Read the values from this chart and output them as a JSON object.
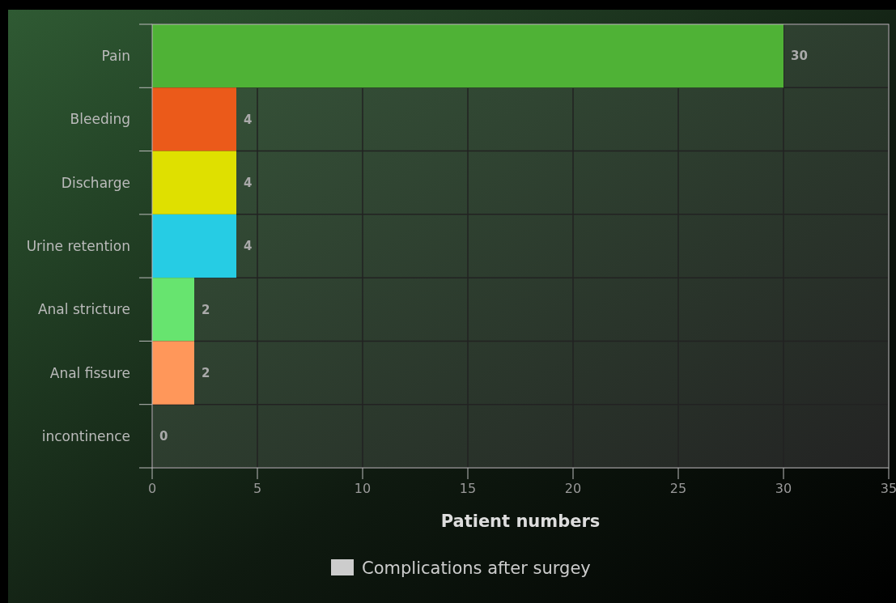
{
  "chart_data": {
    "type": "bar",
    "orientation": "horizontal",
    "xlabel": "Patient numbers",
    "categories": [
      "Pain",
      "Bleeding",
      "Discharge",
      "Urine retention",
      "Anal stricture",
      "Anal fissure",
      "incontinence"
    ],
    "series": [
      {
        "name": "Complications after surgey",
        "color": "#cccccc",
        "values": [
          30,
          4,
          4,
          4,
          2,
          2,
          0
        ],
        "colors": [
          "#4fb236",
          "#eb5a1a",
          "#dfe000",
          "#26cce4",
          "#67e46f",
          "#ff975a",
          "#8a6bd6"
        ]
      }
    ],
    "xlim": [
      0,
      35
    ],
    "xticks": [
      0,
      5,
      10,
      15,
      20,
      25,
      30,
      35
    ],
    "grid": true,
    "legend": "bottom",
    "data_labels": true
  }
}
